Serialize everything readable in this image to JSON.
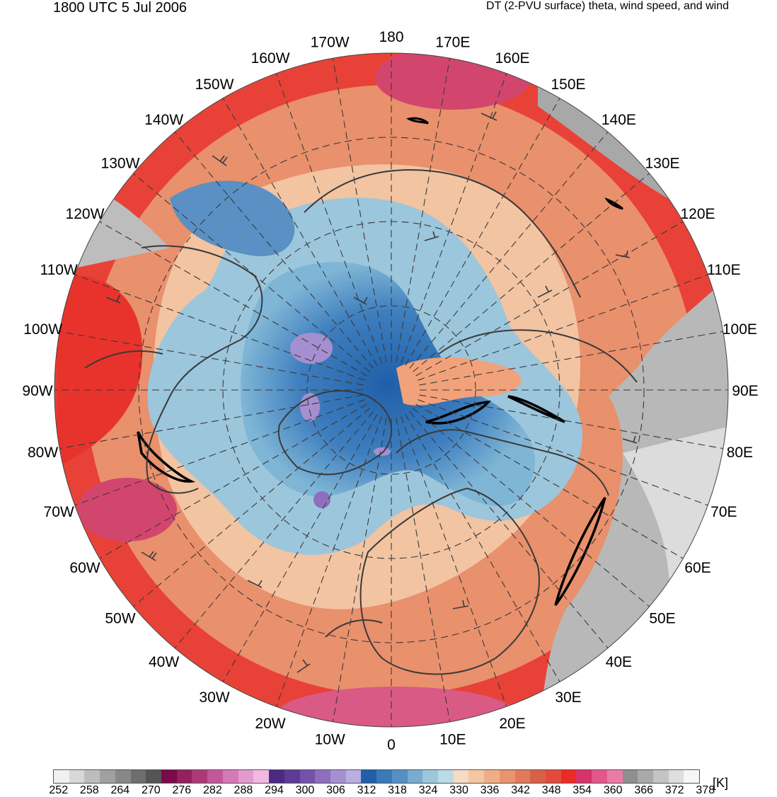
{
  "header": {
    "left": "1800 UTC 5 Jul 2006",
    "right": "DT (2-PVU surface) theta, wind speed, and wind"
  },
  "map": {
    "projection": "north-polar-stereographic",
    "longitude_labels": [
      "180",
      "170E",
      "160E",
      "150E",
      "140E",
      "130E",
      "120E",
      "110E",
      "100E",
      "90E",
      "80E",
      "70E",
      "60E",
      "50E",
      "40E",
      "30E",
      "20E",
      "10E",
      "0",
      "10W",
      "20W",
      "30W",
      "40W",
      "50W",
      "60W",
      "70W",
      "80W",
      "90W",
      "100W",
      "110W",
      "120W",
      "130W",
      "140W",
      "150W",
      "160W",
      "170W"
    ]
  },
  "colorbar": {
    "unit": "[K]",
    "tick_labels": [
      "252",
      "258",
      "264",
      "270",
      "276",
      "282",
      "288",
      "294",
      "300",
      "306",
      "312",
      "318",
      "324",
      "330",
      "336",
      "342",
      "348",
      "354",
      "360",
      "366",
      "372",
      "378"
    ],
    "colors": [
      "#f0f0f0",
      "#d8d8d8",
      "#bdbdbd",
      "#a0a0a0",
      "#888888",
      "#6e6e6e",
      "#555555",
      "#7a0a4a",
      "#94205e",
      "#ad3a78",
      "#c4579a",
      "#d47ab7",
      "#e39bcf",
      "#f2b8e2",
      "#4a2a82",
      "#5e3b96",
      "#7452aa",
      "#8d6fbe",
      "#a58fd0",
      "#bcaee0",
      "#2060a8",
      "#3a7ab8",
      "#5590c4",
      "#78accf",
      "#9cc6dc",
      "#bcdbe6",
      "#f6dcc4",
      "#f4c6a4",
      "#efae88",
      "#e8946e",
      "#e07a5a",
      "#d86048",
      "#e34a3e",
      "#ee2a25",
      "#d6336a",
      "#e2578a",
      "#ea7ba6",
      "#8f8f8f",
      "#a9a9a9",
      "#c4c4c4",
      "#dedede",
      "#f6f6f6"
    ]
  }
}
